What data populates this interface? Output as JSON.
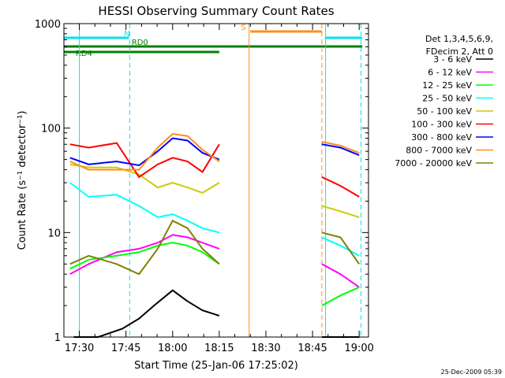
{
  "chart_data": {
    "type": "line",
    "title": "HESSI Observing Summary Count Rates",
    "xlabel": "Start Time (25-Jan-06 17:25:02)",
    "ylabel": "Count Rate (s⁻¹ detector⁻¹)",
    "y_scale": "log",
    "ylim": [
      1,
      1000
    ],
    "xlim": [
      "17:25:02",
      "19:03:00"
    ],
    "x_ticks": [
      "17:30",
      "17:45",
      "18:00",
      "18:15",
      "18:30",
      "18:45",
      "19:00"
    ],
    "y_ticks": [
      "1",
      "10",
      "100",
      "1000"
    ],
    "legend": {
      "header": [
        "Det 1,3,4,5,6,9,",
        "FDecim 2, Att 0"
      ],
      "placement": "right"
    },
    "annotations": {
      "flags": [
        {
          "label": "N",
          "color": "#00e5ee",
          "spans": [
            [
              "17:25",
              "17:46"
            ],
            [
              "18:49",
              "19:01"
            ]
          ]
        },
        {
          "label": "S",
          "color": "#ff8c1a",
          "spans": [
            [
              "18:25",
              "18:48"
            ]
          ]
        },
        {
          "label": "RD0",
          "color": "#008000",
          "spans": [
            [
              "17:25",
              "18:16"
            ],
            [
              "18:16",
              "18:48"
            ],
            [
              "18:48",
              "19:01"
            ]
          ]
        },
        {
          "label": "RD4",
          "color": "#008000",
          "spans": [
            [
              "17:25",
              "18:15"
            ]
          ]
        }
      ],
      "timestamp": "25-Dec-2009 05:39"
    },
    "gaps": [
      [
        "18:24",
        "18:48"
      ]
    ],
    "series": [
      {
        "name": "3 - 6 keV",
        "color": "#000000",
        "values": [
          [
            17.47,
            1
          ],
          [
            17.6,
            1
          ],
          [
            17.73,
            1.2
          ],
          [
            17.82,
            1.5
          ],
          [
            17.9,
            2
          ],
          [
            18.0,
            2.8
          ],
          [
            18.08,
            2.2
          ],
          [
            18.16,
            1.8
          ],
          [
            18.25,
            1.6
          ],
          [
            18.4,
            null
          ],
          [
            18.8,
            1
          ],
          [
            18.9,
            1
          ],
          [
            19.0,
            1
          ]
        ]
      },
      {
        "name": "6 - 12 keV",
        "color": "#ff00ff",
        "values": [
          [
            17.45,
            4
          ],
          [
            17.55,
            5
          ],
          [
            17.7,
            6.5
          ],
          [
            17.82,
            7
          ],
          [
            17.92,
            8
          ],
          [
            18.0,
            9.5
          ],
          [
            18.08,
            9
          ],
          [
            18.16,
            8
          ],
          [
            18.25,
            7
          ],
          [
            18.4,
            null
          ],
          [
            18.8,
            5
          ],
          [
            18.9,
            4
          ],
          [
            19.0,
            3
          ]
        ]
      },
      {
        "name": "12 - 25 keV",
        "color": "#00ff00",
        "values": [
          [
            17.45,
            4.5
          ],
          [
            17.55,
            5.5
          ],
          [
            17.7,
            6
          ],
          [
            17.82,
            6.5
          ],
          [
            17.92,
            7.5
          ],
          [
            18.0,
            8
          ],
          [
            18.08,
            7.5
          ],
          [
            18.16,
            6.5
          ],
          [
            18.25,
            5
          ],
          [
            18.4,
            null
          ],
          [
            18.8,
            2
          ],
          [
            18.9,
            2.5
          ],
          [
            19.0,
            3
          ]
        ]
      },
      {
        "name": "25 - 50 keV",
        "color": "#00ffff",
        "values": [
          [
            17.45,
            30
          ],
          [
            17.55,
            22
          ],
          [
            17.7,
            23
          ],
          [
            17.82,
            18
          ],
          [
            17.92,
            14
          ],
          [
            18.0,
            15
          ],
          [
            18.08,
            13
          ],
          [
            18.16,
            11
          ],
          [
            18.25,
            10
          ],
          [
            18.4,
            null
          ],
          [
            18.8,
            9
          ],
          [
            18.9,
            7.5
          ],
          [
            19.0,
            6
          ]
        ]
      },
      {
        "name": "50 - 100 keV",
        "color": "#cccc00",
        "values": [
          [
            17.45,
            45
          ],
          [
            17.55,
            42
          ],
          [
            17.7,
            42
          ],
          [
            17.82,
            36
          ],
          [
            17.92,
            27
          ],
          [
            18.0,
            30
          ],
          [
            18.08,
            27
          ],
          [
            18.16,
            24
          ],
          [
            18.25,
            30
          ],
          [
            18.4,
            null
          ],
          [
            18.8,
            18
          ],
          [
            18.9,
            16
          ],
          [
            19.0,
            14
          ]
        ]
      },
      {
        "name": "100 - 300 keV",
        "color": "#ff0000",
        "values": [
          [
            17.45,
            70
          ],
          [
            17.55,
            65
          ],
          [
            17.7,
            72
          ],
          [
            17.82,
            34
          ],
          [
            17.92,
            45
          ],
          [
            18.0,
            52
          ],
          [
            18.08,
            48
          ],
          [
            18.16,
            38
          ],
          [
            18.25,
            70
          ],
          [
            18.4,
            null
          ],
          [
            18.8,
            34
          ],
          [
            18.9,
            28
          ],
          [
            19.0,
            22
          ]
        ]
      },
      {
        "name": "300 - 800 keV",
        "color": "#0000ff",
        "values": [
          [
            17.45,
            52
          ],
          [
            17.55,
            45
          ],
          [
            17.7,
            48
          ],
          [
            17.82,
            44
          ],
          [
            17.92,
            60
          ],
          [
            18.0,
            80
          ],
          [
            18.08,
            76
          ],
          [
            18.16,
            58
          ],
          [
            18.25,
            50
          ],
          [
            18.4,
            null
          ],
          [
            18.8,
            70
          ],
          [
            18.9,
            65
          ],
          [
            19.0,
            55
          ]
        ]
      },
      {
        "name": "800 - 7000 keV",
        "color": "#ff8c1a",
        "values": [
          [
            17.45,
            48
          ],
          [
            17.55,
            40
          ],
          [
            17.7,
            40
          ],
          [
            17.82,
            40
          ],
          [
            17.92,
            65
          ],
          [
            18.0,
            88
          ],
          [
            18.08,
            84
          ],
          [
            18.16,
            62
          ],
          [
            18.25,
            48
          ],
          [
            18.4,
            null
          ],
          [
            18.8,
            74
          ],
          [
            18.9,
            68
          ],
          [
            19.0,
            58
          ]
        ]
      },
      {
        "name": "7000 - 20000 keV",
        "color": "#808000",
        "values": [
          [
            17.45,
            5
          ],
          [
            17.55,
            6
          ],
          [
            17.7,
            5
          ],
          [
            17.82,
            4
          ],
          [
            17.92,
            7
          ],
          [
            18.0,
            13
          ],
          [
            18.08,
            11
          ],
          [
            18.16,
            7
          ],
          [
            18.25,
            5
          ],
          [
            18.4,
            null
          ],
          [
            18.8,
            10
          ],
          [
            18.9,
            9
          ],
          [
            19.0,
            5
          ]
        ]
      }
    ]
  }
}
